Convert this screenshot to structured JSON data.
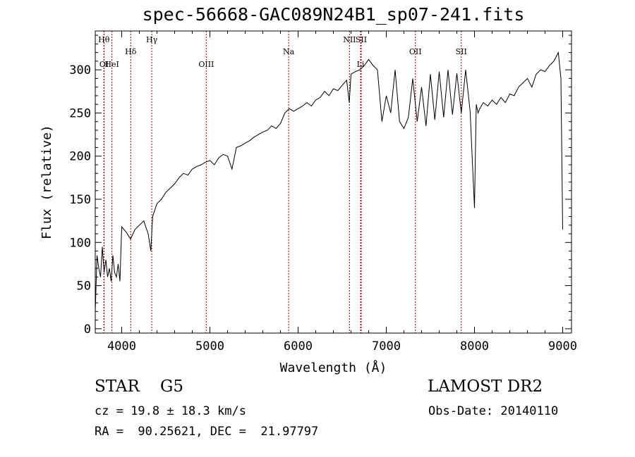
{
  "chart_data": {
    "type": "line",
    "title": "spec-56668-GAC089N24B1_sp07-241.fits",
    "xlabel": "Wavelength (Å)",
    "ylabel": "Flux (relative)",
    "xlim": [
      3700,
      9100
    ],
    "ylim": [
      -5,
      345
    ],
    "xticks": [
      4000,
      5000,
      6000,
      7000,
      8000,
      9000
    ],
    "yticks": [
      0,
      50,
      100,
      150,
      200,
      250,
      300
    ],
    "grid": false,
    "line_color": "#000000",
    "marker_color": "#aa0000",
    "series": [
      {
        "x": [
          3700,
          3720,
          3740,
          3760,
          3780,
          3800,
          3820,
          3840,
          3860,
          3880,
          3900,
          3920,
          3940,
          3960,
          3980,
          4000,
          4050,
          4100,
          4150,
          4200,
          4250,
          4300,
          4330,
          4350,
          4400,
          4450,
          4500,
          4550,
          4600,
          4650,
          4700,
          4750,
          4800,
          4850,
          4900,
          4950,
          5000,
          5050,
          5100,
          5150,
          5200,
          5250,
          5300,
          5350,
          5400,
          5450,
          5500,
          5550,
          5600,
          5650,
          5700,
          5750,
          5800,
          5850,
          5900,
          5950,
          6000,
          6050,
          6100,
          6150,
          6200,
          6250,
          6300,
          6350,
          6400,
          6450,
          6500,
          6550,
          6580,
          6600,
          6650,
          6700,
          6750,
          6800,
          6850,
          6900,
          6950,
          7000,
          7050,
          7100,
          7150,
          7200,
          7250,
          7300,
          7350,
          7400,
          7450,
          7500,
          7550,
          7600,
          7650,
          7700,
          7750,
          7800,
          7850,
          7900,
          7950,
          8000,
          8020,
          8040,
          8060,
          8100,
          8150,
          8200,
          8250,
          8300,
          8350,
          8400,
          8450,
          8500,
          8550,
          8600,
          8650,
          8700,
          8750,
          8800,
          8850,
          8900,
          8950,
          8980,
          9000
        ],
        "y": [
          20,
          85,
          70,
          60,
          95,
          65,
          80,
          60,
          70,
          55,
          85,
          65,
          60,
          75,
          55,
          118,
          112,
          104,
          115,
          120,
          125,
          110,
          90,
          130,
          145,
          150,
          158,
          163,
          168,
          175,
          180,
          178,
          185,
          188,
          190,
          193,
          195,
          190,
          198,
          202,
          200,
          185,
          210,
          212,
          215,
          218,
          222,
          225,
          228,
          230,
          235,
          232,
          238,
          250,
          255,
          252,
          255,
          258,
          262,
          258,
          265,
          268,
          275,
          270,
          278,
          276,
          282,
          288,
          262,
          295,
          298,
          300,
          305,
          312,
          305,
          300,
          240,
          270,
          250,
          300,
          240,
          232,
          245,
          290,
          240,
          280,
          235,
          295,
          242,
          298,
          245,
          300,
          248,
          296,
          250,
          300,
          252,
          140,
          260,
          250,
          255,
          262,
          258,
          265,
          260,
          268,
          262,
          272,
          270,
          280,
          285,
          290,
          280,
          295,
          300,
          298,
          305,
          310,
          320,
          290,
          115
        ]
      }
    ],
    "line_markers": [
      {
        "label": "Hθ",
        "x": 3798,
        "row": 0
      },
      {
        "label": "OI",
        "x": 3800,
        "row": 2
      },
      {
        "label": "HeI",
        "x": 3889,
        "row": 2
      },
      {
        "label": "Hδ",
        "x": 4102,
        "row": 1
      },
      {
        "label": "Hγ",
        "x": 4341,
        "row": 0
      },
      {
        "label": "OIII",
        "x": 4959,
        "row": 2
      },
      {
        "label": "Na",
        "x": 5893,
        "row": 1
      },
      {
        "label": "NII",
        "x": 6583,
        "row": 0
      },
      {
        "label": "SII",
        "x": 6716,
        "row": 0
      },
      {
        "label": "Li",
        "x": 6708,
        "row": 2
      },
      {
        "label": "OII",
        "x": 7330,
        "row": 1
      },
      {
        "label": "SII",
        "x": 7850,
        "row": 1
      }
    ]
  },
  "info": {
    "class": "STAR",
    "subclass": "G5",
    "survey": "LAMOST DR2",
    "cz": "cz = 19.8 ± 18.3 km/s",
    "obs_date": "Obs-Date: 20140110",
    "radec": "RA =  90.25621, DEC =  21.97797"
  }
}
